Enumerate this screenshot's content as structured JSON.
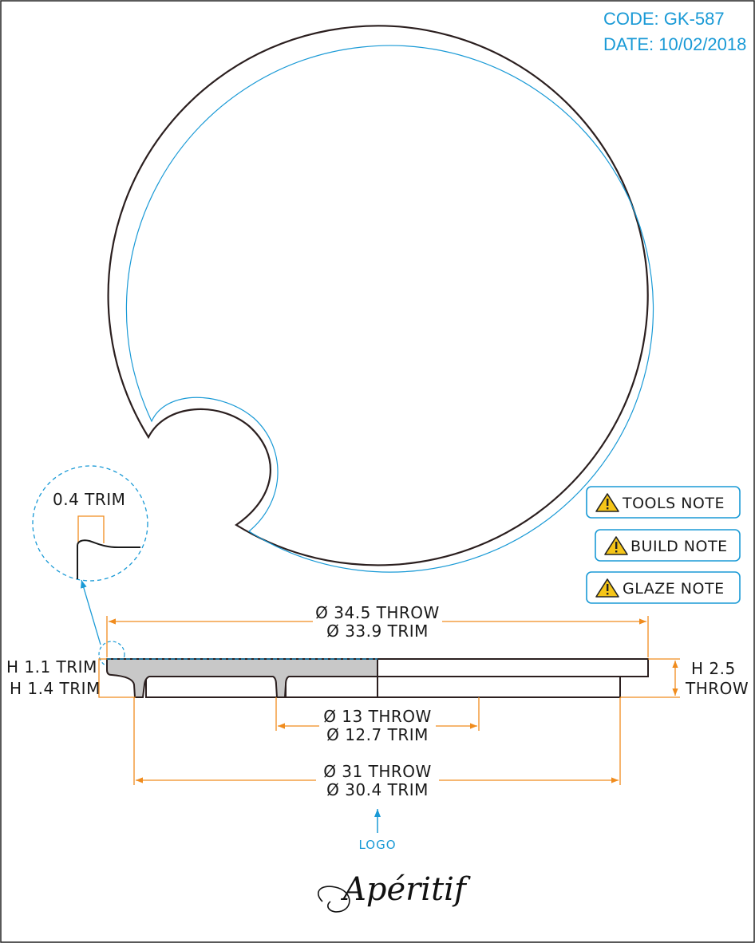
{
  "header": {
    "code": "CODE: GK-587",
    "date": "DATE: 10/02/2018"
  },
  "detail": {
    "trim_label": "0.4 TRIM"
  },
  "notes": [
    {
      "label": "TOOLS NOTE",
      "icon": "warning-icon"
    },
    {
      "label": "BUILD NOTE",
      "icon": "warning-icon"
    },
    {
      "label": "GLAZE NOTE",
      "icon": "warning-icon"
    }
  ],
  "dimensions": {
    "outer_throw": "Ø 34.5 THROW",
    "outer_trim": "Ø 33.9 TRIM",
    "height_trim_top": "H 1.1 TRIM",
    "height_trim_bottom": "H 1.4 TRIM",
    "height_throw_a": "H 2.5",
    "height_throw_b": "THROW",
    "foot_inner_throw": "Ø 13 THROW",
    "foot_inner_trim": "Ø 12.7 TRIM",
    "foot_outer_throw": "Ø 31 THROW",
    "foot_outer_trim": "Ø 30.4 TRIM"
  },
  "logo": {
    "label": "LOGO",
    "brand": "Apéritif"
  },
  "colors": {
    "accent_blue": "#1a9ad6",
    "dimension_orange": "#f08c1e",
    "outline": "#2b1f1f",
    "section_fill": "#c8c8c8"
  }
}
